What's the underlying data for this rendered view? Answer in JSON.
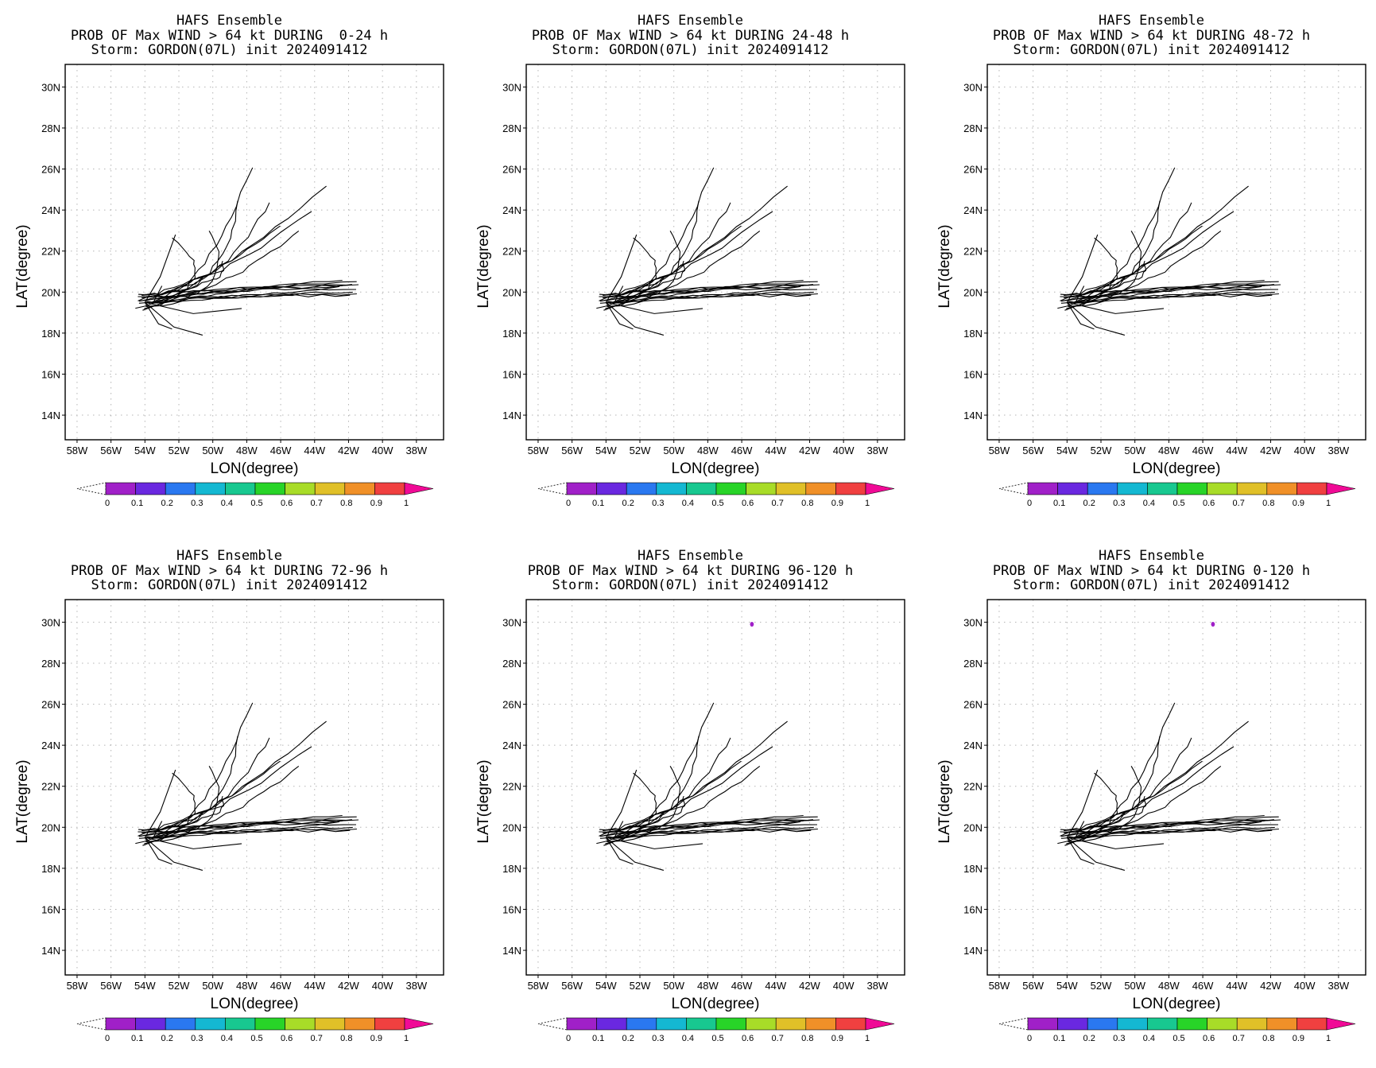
{
  "panels": [
    {
      "title1": "HAFS Ensemble",
      "title2": "PROB OF Max WIND > 64 kt DURING  0-24 h",
      "title3": "Storm: GORDON(07L) init 2024091412",
      "dot": false
    },
    {
      "title1": "HAFS Ensemble",
      "title2": "PROB OF Max WIND > 64 kt DURING 24-48 h",
      "title3": "Storm: GORDON(07L) init 2024091412",
      "dot": false
    },
    {
      "title1": "HAFS Ensemble",
      "title2": "PROB OF Max WIND > 64 kt DURING 48-72 h",
      "title3": "Storm: GORDON(07L) init 2024091412",
      "dot": false
    },
    {
      "title1": "HAFS Ensemble",
      "title2": "PROB OF Max WIND > 64 kt DURING 72-96 h",
      "title3": "Storm: GORDON(07L) init 2024091412",
      "dot": false
    },
    {
      "title1": "HAFS Ensemble",
      "title2": "PROB OF Max WIND > 64 kt DURING 96-120 h",
      "title3": "Storm: GORDON(07L) init 2024091412",
      "dot": true
    },
    {
      "title1": "HAFS Ensemble",
      "title2": "PROB OF Max WIND > 64 kt DURING 0-120 h",
      "title3": "Storm: GORDON(07L) init 2024091412",
      "dot": true
    }
  ],
  "axes": {
    "xlabel": "LON(degree)",
    "ylabel": "LAT(degree)",
    "lon_ticks": [
      "58W",
      "56W",
      "54W",
      "52W",
      "50W",
      "48W",
      "46W",
      "44W",
      "42W",
      "40W",
      "38W"
    ],
    "lat_ticks": [
      "30N",
      "28N",
      "26N",
      "24N",
      "22N",
      "20N",
      "18N",
      "16N",
      "14N"
    ],
    "lon_range_deg_west": [
      58.7,
      36.4
    ],
    "lat_range_deg_north": [
      12.8,
      31.1
    ]
  },
  "colorbar": {
    "labels": [
      "0",
      "0.1",
      "0.2",
      "0.3",
      "0.4",
      "0.5",
      "0.6",
      "0.7",
      "0.8",
      "0.9",
      "1"
    ],
    "colors": [
      "#a020c8",
      "#6a28e0",
      "#2a78f0",
      "#14b8d2",
      "#18c890",
      "#28d428",
      "#a8dc28",
      "#e0c028",
      "#f09028",
      "#f04040",
      "#f00a96"
    ]
  },
  "high_prob_point": {
    "lon_w": 45.4,
    "lat_n": 29.9,
    "color": "#a020c8"
  },
  "track_origin": {
    "lon_w": 54.0,
    "lat_n": 19.5
  },
  "track_endpoints_lon_w_lat_n": [
    [
      41.5,
      20.5
    ],
    [
      41.5,
      20.3
    ],
    [
      41.5,
      20.1
    ],
    [
      41.5,
      19.9
    ],
    [
      41.7,
      20.4
    ],
    [
      41.7,
      20.0
    ],
    [
      42.0,
      20.3
    ],
    [
      42.0,
      19.8
    ],
    [
      42.3,
      20.6
    ],
    [
      42.5,
      20.2
    ],
    [
      45.0,
      23.0
    ],
    [
      43.4,
      25.2
    ],
    [
      46.6,
      24.4
    ],
    [
      44.2,
      24.0
    ],
    [
      47.7,
      26.1
    ],
    [
      46.1,
      23.2
    ],
    [
      48.5,
      24.4
    ],
    [
      50.2,
      23.0
    ],
    [
      52.4,
      22.7
    ],
    [
      49.5,
      21.5
    ]
  ]
}
